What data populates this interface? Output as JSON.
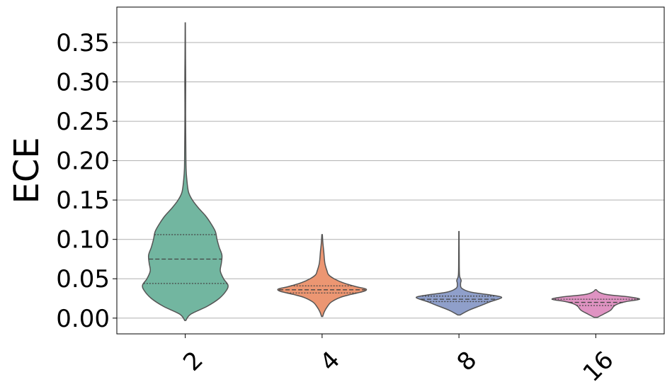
{
  "chart_data": {
    "type": "violin",
    "title": "",
    "xlabel": "",
    "ylabel": "ECE",
    "ylim": [
      -0.02,
      0.395
    ],
    "yticks": [
      0.0,
      0.05,
      0.1,
      0.15,
      0.2,
      0.25,
      0.3,
      0.35
    ],
    "ytick_labels": [
      "0.00",
      "0.05",
      "0.10",
      "0.15",
      "0.20",
      "0.25",
      "0.30",
      "0.35"
    ],
    "grid": "horizontal",
    "categories": [
      "2",
      "4",
      "8",
      "16"
    ],
    "violins": [
      {
        "category": "2",
        "color": "#72b6a0",
        "min": -0.003,
        "max": 0.375,
        "q1": 0.044,
        "median": 0.075,
        "q3": 0.106,
        "density": [
          [
            -0.003,
            0.01
          ],
          [
            0.005,
            0.1
          ],
          [
            0.015,
            0.4
          ],
          [
            0.025,
            0.62
          ],
          [
            0.035,
            0.75
          ],
          [
            0.042,
            0.78
          ],
          [
            0.05,
            0.7
          ],
          [
            0.06,
            0.64
          ],
          [
            0.07,
            0.66
          ],
          [
            0.08,
            0.67
          ],
          [
            0.09,
            0.62
          ],
          [
            0.1,
            0.58
          ],
          [
            0.11,
            0.55
          ],
          [
            0.12,
            0.47
          ],
          [
            0.13,
            0.37
          ],
          [
            0.14,
            0.24
          ],
          [
            0.15,
            0.13
          ],
          [
            0.16,
            0.06
          ],
          [
            0.175,
            0.03
          ],
          [
            0.19,
            0.015
          ],
          [
            0.22,
            0.01
          ],
          [
            0.26,
            0.006
          ],
          [
            0.3,
            0.008
          ],
          [
            0.33,
            0.005
          ],
          [
            0.375,
            0.002
          ]
        ]
      },
      {
        "category": "4",
        "color": "#ec9672",
        "min": 0.002,
        "max": 0.106,
        "q1": 0.032,
        "median": 0.036,
        "q3": 0.041,
        "density": [
          [
            0.002,
            0.01
          ],
          [
            0.008,
            0.04
          ],
          [
            0.014,
            0.09
          ],
          [
            0.02,
            0.16
          ],
          [
            0.026,
            0.32
          ],
          [
            0.03,
            0.52
          ],
          [
            0.034,
            0.76
          ],
          [
            0.037,
            0.8
          ],
          [
            0.04,
            0.62
          ],
          [
            0.045,
            0.38
          ],
          [
            0.05,
            0.22
          ],
          [
            0.055,
            0.12
          ],
          [
            0.06,
            0.09
          ],
          [
            0.07,
            0.05
          ],
          [
            0.085,
            0.03
          ],
          [
            0.095,
            0.015
          ],
          [
            0.106,
            0.005
          ]
        ]
      },
      {
        "category": "8",
        "color": "#8f9fca",
        "min": 0.004,
        "max": 0.11,
        "q1": 0.021,
        "median": 0.024,
        "q3": 0.028,
        "density": [
          [
            0.004,
            0.02
          ],
          [
            0.01,
            0.18
          ],
          [
            0.016,
            0.4
          ],
          [
            0.021,
            0.58
          ],
          [
            0.026,
            0.78
          ],
          [
            0.029,
            0.62
          ],
          [
            0.033,
            0.22
          ],
          [
            0.038,
            0.05
          ],
          [
            0.044,
            0.03
          ],
          [
            0.048,
            0.04
          ],
          [
            0.055,
            0.01
          ],
          [
            0.08,
            0.005
          ],
          [
            0.11,
            0.003
          ]
        ]
      },
      {
        "category": "16",
        "color": "#df93c2",
        "min": 0.001,
        "max": 0.036,
        "q1": 0.016,
        "median": 0.02,
        "q3": 0.024,
        "density": [
          [
            0.001,
            0.03
          ],
          [
            0.005,
            0.14
          ],
          [
            0.01,
            0.27
          ],
          [
            0.015,
            0.33
          ],
          [
            0.018,
            0.4
          ],
          [
            0.021,
            0.55
          ],
          [
            0.024,
            0.8
          ],
          [
            0.027,
            0.6
          ],
          [
            0.03,
            0.2
          ],
          [
            0.033,
            0.06
          ],
          [
            0.036,
            0.01
          ]
        ]
      }
    ]
  }
}
